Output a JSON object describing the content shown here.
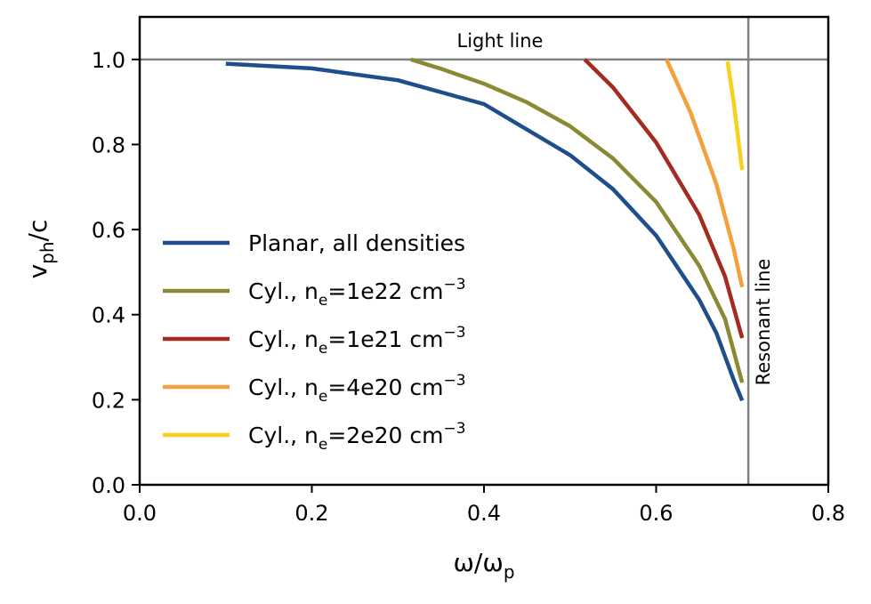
{
  "chart_data": {
    "type": "line",
    "title": "",
    "xlabel": {
      "main": "ω/ω",
      "sub": "p"
    },
    "ylabel": {
      "main": "v",
      "sub": "ph",
      "tail": "/c"
    },
    "xlim": [
      0.0,
      0.8
    ],
    "ylim": [
      0.0,
      1.1
    ],
    "xticks": [
      "0.0",
      "0.2",
      "0.4",
      "0.6",
      "0.8"
    ],
    "yticks": [
      "0.0",
      "0.2",
      "0.4",
      "0.6",
      "0.8",
      "1.0"
    ],
    "xtick_values": [
      0.0,
      0.2,
      0.4,
      0.6,
      0.8
    ],
    "ytick_values": [
      0.0,
      0.2,
      0.4,
      0.6,
      0.8,
      1.0
    ],
    "grid": false,
    "legend_position": "center-left",
    "reference_lines": [
      {
        "orientation": "horizontal",
        "value": 1.0,
        "label": "Light line",
        "color": "#808080"
      },
      {
        "orientation": "vertical",
        "value": 0.7071,
        "label": "Resonant line",
        "color": "#808080"
      }
    ],
    "series": [
      {
        "name": "Planar, all densities",
        "legend_parts": [
          "Planar, all densities"
        ],
        "color": "#1F4E8C",
        "x": [
          0.1,
          0.2,
          0.3,
          0.4,
          0.5,
          0.55,
          0.6,
          0.65,
          0.67,
          0.69,
          0.7
        ],
        "y": [
          0.99,
          0.979,
          0.951,
          0.895,
          0.775,
          0.695,
          0.586,
          0.435,
          0.357,
          0.247,
          0.198
        ]
      },
      {
        "name": "Cyl., ne=1e22 cm-3",
        "legend_parts": [
          "Cyl., n",
          "e",
          "=1e22 cm",
          "−3"
        ],
        "color": "#8A8A35",
        "x": [
          0.315,
          0.35,
          0.4,
          0.45,
          0.5,
          0.55,
          0.6,
          0.65,
          0.68,
          0.7
        ],
        "y": [
          1.0,
          0.978,
          0.943,
          0.899,
          0.843,
          0.767,
          0.665,
          0.515,
          0.39,
          0.24
        ]
      },
      {
        "name": "Cyl., ne=1e21 cm-3",
        "legend_parts": [
          "Cyl., n",
          "e",
          "=1e21 cm",
          "−3"
        ],
        "color": "#A52A22",
        "x": [
          0.517,
          0.55,
          0.6,
          0.65,
          0.68,
          0.7
        ],
        "y": [
          1.0,
          0.934,
          0.805,
          0.635,
          0.49,
          0.345
        ]
      },
      {
        "name": "Cyl., ne=4e20 cm-3",
        "legend_parts": [
          "Cyl., n",
          "e",
          "=4e20 cm",
          "−3"
        ],
        "color": "#F4A03C",
        "x": [
          0.612,
          0.64,
          0.67,
          0.69,
          0.7
        ],
        "y": [
          1.0,
          0.875,
          0.707,
          0.555,
          0.465
        ]
      },
      {
        "name": "Cyl., ne=2e20 cm-3",
        "legend_parts": [
          "Cyl., n",
          "e",
          "=2e20 cm",
          "−3"
        ],
        "color": "#F8D01E",
        "x": [
          0.683,
          0.69,
          0.7
        ],
        "y": [
          0.995,
          0.9,
          0.74
        ]
      }
    ]
  }
}
